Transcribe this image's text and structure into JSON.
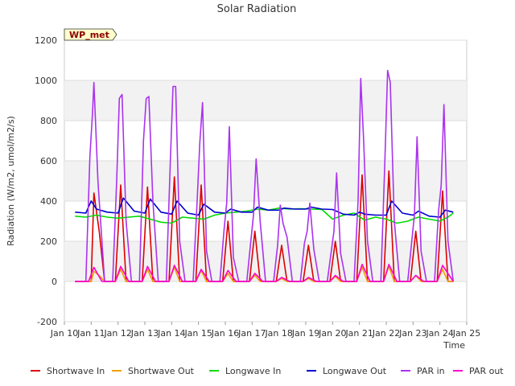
{
  "chart_data": {
    "type": "line",
    "title": "Solar Radiation",
    "xlabel": "Time",
    "ylabel": "Radiation (W/m2, umol/m2/s)",
    "station_label": "WP_met",
    "ylim": [
      -200,
      1200
    ],
    "yticks": [
      -200,
      0,
      200,
      400,
      600,
      800,
      1000,
      1200
    ],
    "xlim": [
      10,
      25
    ],
    "xticks": [
      {
        "value": 10,
        "label": "Jan 10"
      },
      {
        "value": 11,
        "label": "Jan 11"
      },
      {
        "value": 12,
        "label": "Jan 12"
      },
      {
        "value": 13,
        "label": "Jan 13"
      },
      {
        "value": 14,
        "label": "Jan 14"
      },
      {
        "value": 15,
        "label": "Jan 15"
      },
      {
        "value": 16,
        "label": "Jan 16"
      },
      {
        "value": 17,
        "label": "Jan 17"
      },
      {
        "value": 18,
        "label": "Jan 18"
      },
      {
        "value": 19,
        "label": "Jan 19"
      },
      {
        "value": 20,
        "label": "Jan 20"
      },
      {
        "value": 21,
        "label": "Jan 21"
      },
      {
        "value": 22,
        "label": "Jan 22"
      },
      {
        "value": 23,
        "label": "Jan 23"
      },
      {
        "value": 24,
        "label": "Jan 24"
      },
      {
        "value": 25,
        "label": "Jan 25"
      }
    ],
    "grid": true,
    "legend_position": "bottom",
    "series": [
      {
        "name": "Shortwave In",
        "color": "#dd0000",
        "x": [
          10.4,
          11.0,
          11.1,
          11.3,
          11.5,
          11.9,
          12.1,
          12.3,
          12.5,
          12.9,
          13.1,
          13.3,
          13.5,
          13.9,
          14.1,
          14.3,
          14.5,
          14.9,
          15.1,
          15.3,
          15.5,
          15.9,
          16.1,
          16.3,
          16.5,
          16.9,
          17.1,
          17.3,
          17.5,
          17.9,
          18.1,
          18.3,
          18.5,
          18.9,
          19.1,
          19.3,
          19.5,
          19.9,
          20.1,
          20.3,
          20.5,
          20.9,
          21.1,
          21.3,
          21.5,
          21.9,
          22.1,
          22.3,
          22.5,
          22.9,
          23.1,
          23.3,
          23.5,
          23.9,
          24.1,
          24.3,
          24.5
        ],
        "y": [
          0,
          0,
          440,
          250,
          0,
          0,
          480,
          0,
          0,
          0,
          470,
          0,
          0,
          0,
          520,
          0,
          0,
          0,
          480,
          0,
          0,
          0,
          300,
          0,
          0,
          0,
          250,
          0,
          0,
          0,
          180,
          0,
          0,
          0,
          180,
          0,
          0,
          0,
          200,
          0,
          0,
          0,
          530,
          0,
          0,
          0,
          550,
          0,
          0,
          0,
          250,
          0,
          0,
          0,
          450,
          0,
          0
        ]
      },
      {
        "name": "Shortwave Out",
        "color": "#f0a000",
        "x": [
          10.4,
          11.0,
          11.1,
          11.3,
          11.5,
          11.9,
          12.1,
          12.3,
          12.5,
          12.9,
          13.1,
          13.3,
          13.5,
          13.9,
          14.1,
          14.3,
          14.5,
          14.9,
          15.1,
          15.3,
          15.5,
          15.9,
          16.1,
          16.3,
          16.5,
          16.9,
          17.1,
          17.3,
          17.5,
          17.9,
          18.1,
          18.3,
          18.5,
          18.9,
          19.1,
          19.3,
          19.5,
          19.9,
          20.1,
          20.3,
          20.5,
          20.9,
          21.1,
          21.3,
          21.5,
          21.9,
          22.1,
          22.3,
          22.5,
          22.9,
          23.1,
          23.3,
          23.5,
          23.9,
          24.1,
          24.3,
          24.5
        ],
        "y": [
          0,
          0,
          50,
          30,
          0,
          0,
          60,
          0,
          0,
          0,
          60,
          0,
          0,
          0,
          70,
          0,
          0,
          0,
          55,
          0,
          0,
          0,
          40,
          0,
          0,
          0,
          30,
          0,
          0,
          0,
          15,
          0,
          0,
          0,
          15,
          0,
          0,
          0,
          25,
          0,
          0,
          0,
          70,
          0,
          0,
          0,
          75,
          0,
          0,
          0,
          30,
          0,
          0,
          0,
          60,
          0,
          0
        ]
      },
      {
        "name": "Longwave In",
        "color": "#00dd00",
        "x": [
          10.4,
          10.8,
          11.2,
          11.6,
          12.0,
          12.4,
          12.8,
          13.2,
          13.6,
          14.0,
          14.4,
          14.8,
          15.2,
          15.6,
          16.0,
          16.4,
          16.8,
          17.2,
          17.6,
          18.0,
          18.4,
          18.8,
          19.2,
          19.6,
          20.0,
          20.4,
          20.8,
          21.2,
          21.6,
          22.0,
          22.4,
          22.8,
          23.2,
          23.6,
          24.0,
          24.3,
          24.5
        ],
        "y": [
          325,
          320,
          330,
          320,
          315,
          320,
          325,
          310,
          295,
          290,
          320,
          315,
          310,
          330,
          340,
          345,
          350,
          360,
          355,
          365,
          360,
          362,
          360,
          358,
          310,
          330,
          340,
          305,
          320,
          310,
          290,
          300,
          320,
          310,
          300,
          320,
          340
        ]
      },
      {
        "name": "Longwave Out",
        "color": "#0000cc",
        "x": [
          10.4,
          10.8,
          11.0,
          11.2,
          11.6,
          12.0,
          12.2,
          12.6,
          13.0,
          13.2,
          13.6,
          14.0,
          14.2,
          14.6,
          15.0,
          15.2,
          15.6,
          16.0,
          16.2,
          16.6,
          17.0,
          17.2,
          17.6,
          18.0,
          18.2,
          18.6,
          19.0,
          19.2,
          19.6,
          20.0,
          20.4,
          20.8,
          21.0,
          21.2,
          21.6,
          22.0,
          22.2,
          22.6,
          23.0,
          23.2,
          23.6,
          24.0,
          24.2,
          24.5
        ],
        "y": [
          345,
          340,
          400,
          360,
          345,
          340,
          415,
          350,
          340,
          410,
          345,
          335,
          400,
          340,
          330,
          385,
          345,
          340,
          360,
          345,
          345,
          370,
          355,
          355,
          365,
          360,
          360,
          370,
          360,
          358,
          335,
          330,
          345,
          335,
          330,
          330,
          400,
          340,
          330,
          350,
          325,
          320,
          355,
          345
        ]
      },
      {
        "name": "PAR in",
        "color": "#aa33ee",
        "x": [
          10.4,
          10.8,
          10.95,
          11.05,
          11.1,
          11.25,
          11.5,
          11.8,
          11.95,
          12.05,
          12.15,
          12.3,
          12.5,
          12.8,
          12.95,
          13.05,
          13.15,
          13.3,
          13.5,
          13.8,
          13.95,
          14.05,
          14.15,
          14.3,
          14.5,
          14.8,
          14.95,
          15.05,
          15.15,
          15.3,
          15.5,
          15.8,
          15.95,
          16.05,
          16.15,
          16.3,
          16.5,
          16.8,
          16.95,
          17.05,
          17.15,
          17.3,
          17.5,
          17.8,
          17.95,
          18.05,
          18.15,
          18.3,
          18.5,
          18.8,
          18.95,
          19.05,
          19.15,
          19.3,
          19.5,
          19.8,
          19.95,
          20.05,
          20.15,
          20.3,
          20.5,
          20.8,
          20.95,
          21.05,
          21.15,
          21.3,
          21.5,
          21.8,
          21.95,
          22.05,
          22.15,
          22.3,
          22.5,
          22.8,
          22.95,
          23.05,
          23.15,
          23.3,
          23.5,
          23.8,
          23.95,
          24.05,
          24.15,
          24.3,
          24.5
        ],
        "y": [
          0,
          0,
          620,
          840,
          990,
          500,
          0,
          0,
          500,
          910,
          930,
          300,
          0,
          0,
          700,
          910,
          920,
          400,
          0,
          0,
          600,
          970,
          970,
          200,
          0,
          0,
          400,
          690,
          890,
          150,
          0,
          0,
          250,
          390,
          770,
          120,
          0,
          0,
          200,
          330,
          610,
          300,
          0,
          0,
          180,
          380,
          290,
          220,
          0,
          0,
          190,
          250,
          390,
          160,
          0,
          0,
          150,
          250,
          540,
          140,
          0,
          0,
          400,
          1010,
          720,
          200,
          0,
          0,
          600,
          1050,
          990,
          300,
          0,
          0,
          200,
          330,
          720,
          150,
          0,
          0,
          350,
          480,
          880,
          200,
          0
        ]
      },
      {
        "name": "PAR out",
        "color": "#ff00cc",
        "x": [
          10.4,
          10.9,
          11.1,
          11.4,
          11.9,
          12.1,
          12.4,
          12.9,
          13.1,
          13.4,
          13.9,
          14.1,
          14.4,
          14.9,
          15.1,
          15.4,
          15.9,
          16.1,
          16.4,
          16.9,
          17.1,
          17.4,
          17.9,
          18.1,
          18.4,
          18.9,
          19.1,
          19.4,
          19.9,
          20.1,
          20.4,
          20.9,
          21.1,
          21.4,
          21.9,
          22.1,
          22.4,
          22.9,
          23.1,
          23.4,
          23.9,
          24.1,
          24.5
        ],
        "y": [
          0,
          0,
          70,
          0,
          0,
          75,
          0,
          0,
          75,
          0,
          0,
          80,
          0,
          0,
          60,
          0,
          0,
          55,
          0,
          0,
          40,
          0,
          0,
          20,
          0,
          0,
          20,
          0,
          0,
          30,
          0,
          0,
          85,
          0,
          0,
          85,
          0,
          0,
          30,
          0,
          0,
          80,
          0
        ]
      }
    ]
  }
}
